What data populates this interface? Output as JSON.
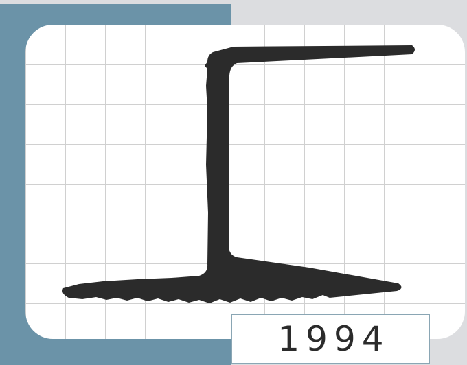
{
  "year_label": "1994",
  "colors": {
    "background": "#dcdde0",
    "accent_block": "#6b93a8",
    "panel": "#ffffff",
    "grid_line": "#d0d0d0",
    "profile_fill": "#2b2b2b",
    "year_border": "#8aa6b4"
  }
}
